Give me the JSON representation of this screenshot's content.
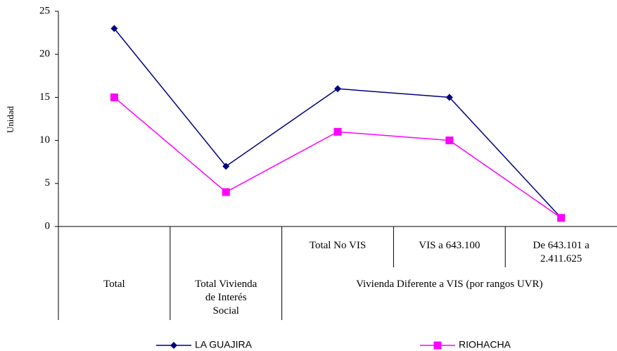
{
  "chart_data": {
    "type": "line",
    "ylabel": "Unidad",
    "categories": [
      "Total",
      "Total Vivienda de Interés Social",
      "Total No VIS",
      "VIS a 643.100",
      "De 643.101 a 2.411.625"
    ],
    "category_groups": [
      {
        "label": "Vivienda Diferente a VIS (por rangos UVR)",
        "first": 2,
        "last": 4
      }
    ],
    "series": [
      {
        "name": "LA GUAJIRA",
        "color": "#000080",
        "marker": "diamond",
        "values": [
          23,
          7,
          16,
          15,
          1
        ]
      },
      {
        "name": "RIOHACHA",
        "color": "#ff00ff",
        "marker": "square",
        "values": [
          15,
          4,
          11,
          10,
          1
        ]
      }
    ],
    "ylim": [
      0,
      25
    ],
    "yticks": [
      0,
      5,
      10,
      15,
      20,
      25
    ],
    "grid": false,
    "legend": "bottom"
  }
}
